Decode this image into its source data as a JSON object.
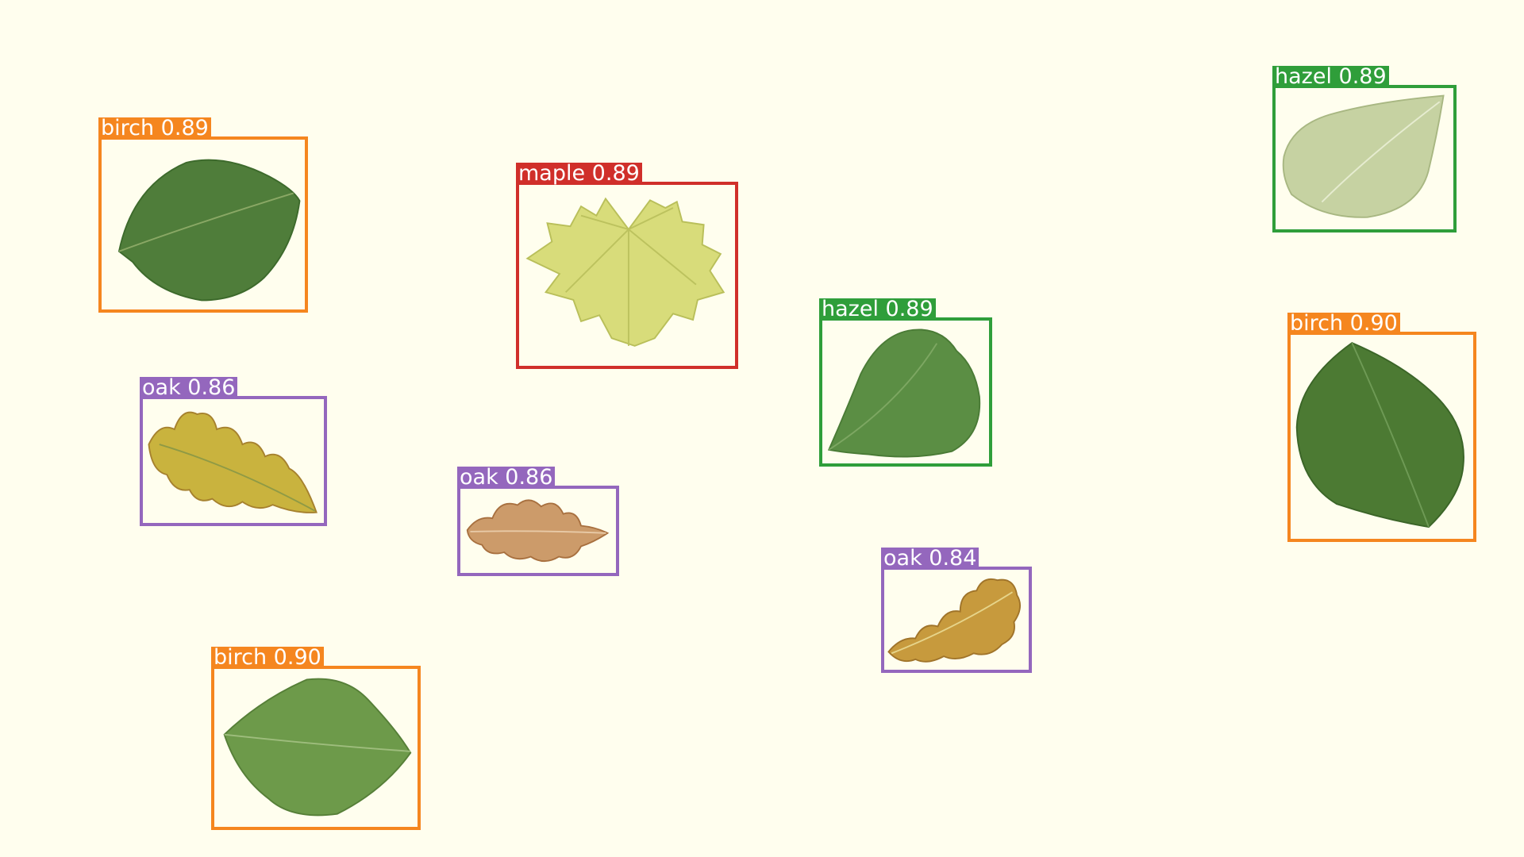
{
  "colors": {
    "background": "#fffeee",
    "birch": "#f5861f",
    "maple": "#d02f2a",
    "hazel": "#2f9e3a",
    "oak": "#9467bd"
  },
  "detections": [
    {
      "id": "birch-1",
      "class": "birch",
      "score": "0.89",
      "label": "birch  0.89",
      "icon": "birch-leaf"
    },
    {
      "id": "maple-1",
      "class": "maple",
      "score": "0.89",
      "label": "maple  0.89",
      "icon": "maple-leaf"
    },
    {
      "id": "hazel-1",
      "class": "hazel",
      "score": "0.89",
      "label": "hazel  0.89",
      "icon": "hazel-leaf"
    },
    {
      "id": "hazel-2",
      "class": "hazel",
      "score": "0.89",
      "label": "hazel  0.89",
      "icon": "hazel-leaf"
    },
    {
      "id": "birch-2",
      "class": "birch",
      "score": "0.90",
      "label": "birch  0.90",
      "icon": "birch-leaf"
    },
    {
      "id": "oak-1",
      "class": "oak",
      "score": "0.86",
      "label": "oak  0.86",
      "icon": "oak-leaf"
    },
    {
      "id": "oak-2",
      "class": "oak",
      "score": "0.86",
      "label": "oak  0.86",
      "icon": "oak-leaf"
    },
    {
      "id": "oak-3",
      "class": "oak",
      "score": "0.84",
      "label": "oak  0.84",
      "icon": "oak-leaf"
    },
    {
      "id": "birch-3",
      "class": "birch",
      "score": "0.90",
      "label": "birch  0.90",
      "icon": "birch-leaf"
    }
  ]
}
